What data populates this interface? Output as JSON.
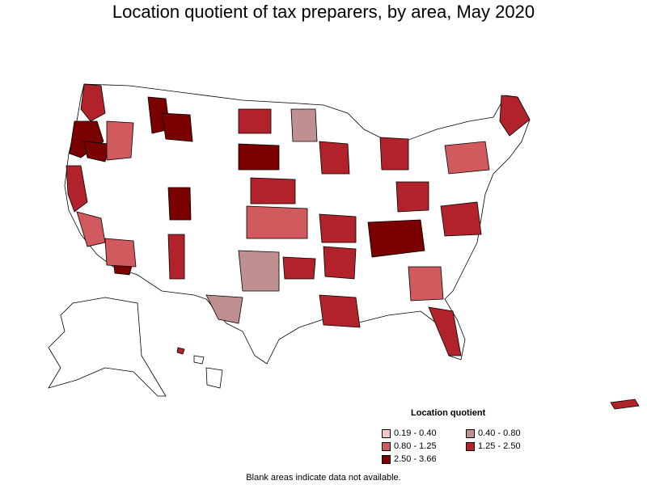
{
  "title": "Location quotient of tax preparers, by area, May 2020",
  "legend": {
    "title": "Location quotient",
    "items": [
      {
        "label": "0.19 - 0.40",
        "color": "#f4c6c9"
      },
      {
        "label": "0.40 - 0.80",
        "color": "#c09090"
      },
      {
        "label": "0.80 - 1.25",
        "color": "#d05a5e"
      },
      {
        "label": "1.25 - 2.50",
        "color": "#b2222a"
      },
      {
        "label": "2.50 - 3.66",
        "color": "#7a0000"
      }
    ]
  },
  "footnote": "Blank areas indicate data not available.",
  "colors": {
    "no_data": "#ffffff",
    "border": "#000000"
  }
}
